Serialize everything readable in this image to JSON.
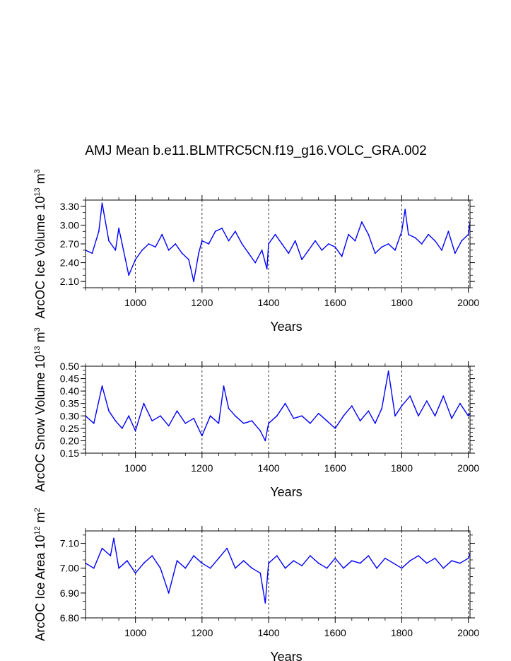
{
  "chart_data": [
    {
      "type": "line",
      "title": "AMJ Mean b.e11.BLMTRC5CN.f19_g16.VOLC_GRA.002",
      "ylabel": "ArcOC Ice Volume",
      "ylabel_unit": "10",
      "ylabel_unit_exp": "13",
      "ylabel_unit_tail": "m",
      "ylabel_unit_tail_exp": "3",
      "xlabel": "Years",
      "xlim": [
        850,
        2005
      ],
      "ylim": [
        2.0,
        3.4
      ],
      "xticks": [
        "1000",
        "1200",
        "1400",
        "1600",
        "1800",
        "2000"
      ],
      "yticks": [
        "2.10",
        "2.40",
        "2.70",
        "3.00",
        "3.30"
      ],
      "series_color": "#0000ff",
      "gridline_style": "dashed-vertical",
      "x": [
        850,
        870,
        890,
        900,
        920,
        940,
        950,
        960,
        970,
        980,
        1000,
        1020,
        1040,
        1060,
        1080,
        1100,
        1120,
        1140,
        1160,
        1175,
        1190,
        1200,
        1220,
        1240,
        1260,
        1280,
        1300,
        1320,
        1340,
        1360,
        1380,
        1395,
        1400,
        1420,
        1440,
        1460,
        1480,
        1500,
        1520,
        1540,
        1560,
        1580,
        1600,
        1620,
        1640,
        1660,
        1680,
        1700,
        1720,
        1740,
        1760,
        1780,
        1800,
        1810,
        1820,
        1840,
        1860,
        1880,
        1900,
        1920,
        1940,
        1960,
        1980,
        2000,
        2005
      ],
      "values": [
        2.6,
        2.55,
        2.9,
        3.35,
        2.75,
        2.6,
        2.95,
        2.7,
        2.45,
        2.2,
        2.45,
        2.6,
        2.7,
        2.65,
        2.85,
        2.6,
        2.7,
        2.55,
        2.45,
        2.1,
        2.55,
        2.75,
        2.7,
        2.9,
        2.95,
        2.75,
        2.9,
        2.7,
        2.55,
        2.4,
        2.6,
        2.3,
        2.7,
        2.85,
        2.7,
        2.55,
        2.75,
        2.45,
        2.6,
        2.75,
        2.6,
        2.7,
        2.65,
        2.5,
        2.85,
        2.75,
        3.05,
        2.85,
        2.55,
        2.65,
        2.7,
        2.6,
        2.9,
        3.25,
        2.85,
        2.8,
        2.7,
        2.85,
        2.75,
        2.6,
        2.9,
        2.55,
        2.75,
        2.85,
        3.05
      ]
    },
    {
      "type": "line",
      "ylabel": "ArcOC Snow Volume",
      "ylabel_unit": "10",
      "ylabel_unit_exp": "13",
      "ylabel_unit_tail": "m",
      "ylabel_unit_tail_exp": "3",
      "xlabel": "Years",
      "xlim": [
        850,
        2005
      ],
      "ylim": [
        0.15,
        0.5
      ],
      "xticks": [
        "1000",
        "1200",
        "1400",
        "1600",
        "1800",
        "2000"
      ],
      "yticks": [
        "0.15",
        "0.20",
        "0.25",
        "0.30",
        "0.35",
        "0.40",
        "0.45",
        "0.50"
      ],
      "series_color": "#0000ff",
      "gridline_style": "dashed-vertical",
      "x": [
        850,
        875,
        900,
        920,
        940,
        960,
        980,
        1000,
        1025,
        1050,
        1075,
        1100,
        1125,
        1150,
        1175,
        1200,
        1225,
        1250,
        1265,
        1280,
        1300,
        1325,
        1350,
        1375,
        1390,
        1400,
        1425,
        1450,
        1475,
        1500,
        1525,
        1550,
        1575,
        1600,
        1625,
        1650,
        1675,
        1700,
        1720,
        1740,
        1760,
        1780,
        1800,
        1825,
        1850,
        1875,
        1900,
        1925,
        1950,
        1975,
        2000,
        2005
      ],
      "values": [
        0.3,
        0.27,
        0.42,
        0.32,
        0.28,
        0.25,
        0.3,
        0.24,
        0.35,
        0.28,
        0.3,
        0.26,
        0.32,
        0.27,
        0.29,
        0.22,
        0.3,
        0.27,
        0.42,
        0.33,
        0.3,
        0.27,
        0.28,
        0.24,
        0.2,
        0.27,
        0.3,
        0.35,
        0.29,
        0.3,
        0.27,
        0.31,
        0.28,
        0.25,
        0.3,
        0.34,
        0.28,
        0.32,
        0.27,
        0.33,
        0.48,
        0.3,
        0.34,
        0.38,
        0.3,
        0.36,
        0.3,
        0.38,
        0.29,
        0.35,
        0.3,
        0.31
      ]
    },
    {
      "type": "line",
      "ylabel": "ArcOC Ice Area",
      "ylabel_unit": "10",
      "ylabel_unit_exp": "12",
      "ylabel_unit_tail": "m",
      "ylabel_unit_tail_exp": "2",
      "xlabel": "Years",
      "xlim": [
        850,
        2005
      ],
      "ylim": [
        6.8,
        7.15
      ],
      "xticks": [
        "1000",
        "1200",
        "1400",
        "1600",
        "1800",
        "2000"
      ],
      "yticks": [
        "6.80",
        "6.90",
        "7.00",
        "7.10"
      ],
      "series_color": "#0000ff",
      "gridline_style": "dashed-vertical",
      "x": [
        850,
        875,
        900,
        925,
        935,
        950,
        975,
        1000,
        1025,
        1050,
        1075,
        1100,
        1125,
        1150,
        1175,
        1200,
        1225,
        1250,
        1275,
        1300,
        1325,
        1350,
        1375,
        1390,
        1400,
        1425,
        1450,
        1475,
        1500,
        1525,
        1550,
        1575,
        1600,
        1625,
        1650,
        1675,
        1700,
        1725,
        1750,
        1775,
        1800,
        1825,
        1850,
        1875,
        1900,
        1925,
        1950,
        1975,
        2000,
        2005
      ],
      "values": [
        7.02,
        7.0,
        7.08,
        7.05,
        7.12,
        7.0,
        7.03,
        6.98,
        7.02,
        7.05,
        7.0,
        6.9,
        7.03,
        7.0,
        7.05,
        7.02,
        7.0,
        7.04,
        7.08,
        7.0,
        7.03,
        7.0,
        6.98,
        6.86,
        7.02,
        7.05,
        7.0,
        7.03,
        7.01,
        7.05,
        7.02,
        7.0,
        7.04,
        7.0,
        7.03,
        7.02,
        7.05,
        7.0,
        7.04,
        7.02,
        7.0,
        7.03,
        7.05,
        7.02,
        7.04,
        7.0,
        7.03,
        7.02,
        7.04,
        7.06
      ]
    }
  ]
}
